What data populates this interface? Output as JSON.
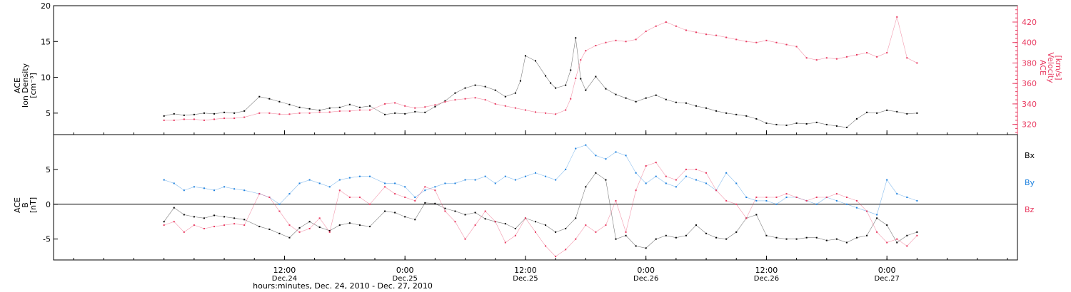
{
  "chart_data": [
    {
      "type": "scatter",
      "panel": "top",
      "ylabel": [
        "ACE",
        "Ion Density",
        "[cm⁻³]"
      ],
      "ylim": [
        2,
        20
      ],
      "yticks": [
        5,
        10,
        15,
        20
      ],
      "y2label": [
        "ACE",
        "Velocity",
        "[km/s]"
      ],
      "y2lim": [
        310,
        436
      ],
      "y2ticks": [
        320,
        340,
        360,
        380,
        400,
        420
      ],
      "series": [
        {
          "name": "",
          "axis": "left",
          "color": "#000000",
          "x": [
            0.0,
            1.0,
            2.0,
            3.0,
            4.0,
            5.0,
            6.0,
            7.0,
            8.0,
            9.5,
            10.5,
            11.5,
            12.5,
            13.5,
            14.5,
            15.5,
            16.5,
            17.5,
            18.5,
            19.5,
            20.5,
            22.0,
            23.0,
            24.0,
            25.0,
            26.0,
            27.0,
            28.0,
            29.0,
            30.0,
            31.0,
            32.0,
            33.0,
            34.0,
            35.0,
            35.5,
            36.0,
            37.0,
            38.0,
            38.5,
            39.0,
            40.0,
            40.5,
            41.0,
            41.5,
            42.0,
            43.0,
            44.0,
            45.0,
            46.0,
            47.0,
            48.0,
            49.0,
            50.0,
            51.0,
            52.0,
            53.0,
            54.0,
            55.0,
            56.0,
            57.0,
            58.0,
            59.0,
            60.0,
            61.0,
            62.0,
            63.0,
            64.0,
            65.0,
            66.0,
            67.0,
            68.0,
            69.0,
            70.0,
            71.0,
            72.0,
            73.0,
            74.0,
            75.0
          ],
          "y": [
            4.6,
            4.9,
            4.7,
            4.8,
            5.0,
            4.9,
            5.1,
            5.0,
            5.3,
            7.3,
            7.0,
            6.6,
            6.2,
            5.8,
            5.6,
            5.4,
            5.7,
            5.8,
            6.2,
            5.8,
            6.0,
            4.8,
            5.0,
            4.9,
            5.2,
            5.1,
            5.9,
            6.7,
            7.8,
            8.5,
            8.9,
            8.7,
            8.2,
            7.3,
            7.8,
            9.5,
            13.0,
            12.3,
            10.2,
            9.2,
            8.5,
            8.9,
            11.0,
            15.5,
            9.8,
            8.2,
            10.1,
            8.4,
            7.6,
            7.1,
            6.6,
            7.1,
            7.5,
            6.9,
            6.5,
            6.4,
            6.0,
            5.7,
            5.3,
            5.0,
            4.8,
            4.6,
            4.2,
            3.6,
            3.4,
            3.3,
            3.6,
            3.5,
            3.7,
            3.4,
            3.2,
            3.0,
            4.2,
            5.1,
            5.0,
            5.4,
            5.2,
            4.9,
            5.0
          ]
        },
        {
          "name": "",
          "axis": "right",
          "color": "#e8385f",
          "x": [
            0.0,
            1.0,
            2.0,
            3.0,
            4.0,
            5.0,
            6.0,
            7.0,
            8.0,
            9.5,
            10.5,
            11.5,
            12.5,
            13.5,
            14.5,
            15.5,
            16.5,
            17.5,
            18.5,
            19.5,
            20.5,
            22.0,
            23.0,
            24.0,
            25.0,
            26.0,
            27.0,
            28.0,
            29.0,
            30.0,
            31.0,
            32.0,
            33.0,
            34.0,
            35.0,
            36.0,
            37.0,
            38.0,
            39.0,
            40.0,
            40.5,
            41.0,
            41.5,
            42.0,
            43.0,
            44.0,
            45.0,
            46.0,
            47.0,
            48.0,
            49.0,
            50.0,
            51.0,
            52.0,
            53.0,
            54.0,
            55.0,
            56.0,
            57.0,
            58.0,
            59.0,
            60.0,
            61.0,
            62.0,
            63.0,
            64.0,
            65.0,
            66.0,
            67.0,
            68.0,
            69.0,
            70.0,
            71.0,
            72.0,
            73.0,
            74.0,
            75.0
          ],
          "y": [
            324,
            324,
            325,
            325,
            324,
            325,
            326,
            326,
            327,
            331,
            331,
            330,
            330,
            331,
            331,
            332,
            332,
            333,
            333,
            334,
            334,
            340,
            341,
            338,
            336,
            337,
            339,
            342,
            344,
            345,
            346,
            344,
            340,
            338,
            336,
            334,
            332,
            331,
            330,
            334,
            345,
            365,
            383,
            392,
            397,
            400,
            402,
            401,
            403,
            411,
            416,
            420,
            416,
            412,
            410,
            408,
            407,
            405,
            403,
            401,
            400,
            402,
            400,
            398,
            396,
            385,
            383,
            385,
            384,
            386,
            388,
            390,
            386,
            390,
            425,
            385,
            380
          ]
        }
      ]
    },
    {
      "type": "scatter",
      "panel": "bottom",
      "ylabel": [
        "ACE",
        "B",
        "[nT]"
      ],
      "ylim": [
        -8,
        10
      ],
      "yticks": [
        -5,
        0,
        5
      ],
      "zero_line": true,
      "xlabel": "hours:minutes, Dec. 24, 2010 - Dec. 27, 2010",
      "xlim": [
        -11,
        85
      ],
      "xticks": [
        {
          "hour": 12,
          "time": "12:00",
          "date": "Dec.24"
        },
        {
          "hour": 24,
          "time": "0:00",
          "date": "Dec.25"
        },
        {
          "hour": 36,
          "time": "12:00",
          "date": "Dec.25"
        },
        {
          "hour": 48,
          "time": "0:00",
          "date": "Dec.26"
        },
        {
          "hour": 60,
          "time": "12:00",
          "date": "Dec.26"
        },
        {
          "hour": 72,
          "time": "0:00",
          "date": "Dec.27"
        }
      ],
      "series": [
        {
          "name": "Bx",
          "color": "#000000",
          "x": [
            0.0,
            1.0,
            2.0,
            3.0,
            4.0,
            5.0,
            6.0,
            7.0,
            8.0,
            9.5,
            10.5,
            11.5,
            12.5,
            13.5,
            14.5,
            15.5,
            16.5,
            17.5,
            18.5,
            19.5,
            20.5,
            22.0,
            23.0,
            24.0,
            25.0,
            26.0,
            27.0,
            28.0,
            29.0,
            30.0,
            31.0,
            32.0,
            33.0,
            34.0,
            35.0,
            36.0,
            37.0,
            38.0,
            39.0,
            40.0,
            41.0,
            42.0,
            43.0,
            44.0,
            45.0,
            46.0,
            47.0,
            48.0,
            49.0,
            50.0,
            51.0,
            52.0,
            53.0,
            54.0,
            55.0,
            56.0,
            57.0,
            58.0,
            59.0,
            60.0,
            61.0,
            62.0,
            63.0,
            64.0,
            65.0,
            66.0,
            67.0,
            68.0,
            69.0,
            70.0,
            71.0,
            72.0,
            73.0,
            74.0,
            75.0
          ],
          "y": [
            -2.5,
            -0.5,
            -1.5,
            -1.8,
            -2.0,
            -1.6,
            -1.8,
            -2.0,
            -2.2,
            -3.2,
            -3.6,
            -4.2,
            -4.8,
            -3.4,
            -2.5,
            -3.3,
            -3.8,
            -3.0,
            -2.7,
            -3.0,
            -3.2,
            -1.0,
            -1.2,
            -1.8,
            -2.2,
            0.2,
            0.1,
            -0.6,
            -1.0,
            -1.5,
            -1.2,
            -2.1,
            -2.5,
            -2.8,
            -3.5,
            -2.0,
            -2.5,
            -3.0,
            -4.0,
            -3.5,
            -2.0,
            2.5,
            4.5,
            3.5,
            -5.0,
            -4.5,
            -6.0,
            -6.3,
            -5.0,
            -4.5,
            -4.8,
            -4.5,
            -3.0,
            -4.2,
            -4.8,
            -5.0,
            -4.0,
            -2.0,
            -1.5,
            -4.5,
            -4.8,
            -5.0,
            -5.0,
            -4.8,
            -4.8,
            -5.2,
            -5.0,
            -5.5,
            -4.8,
            -4.5,
            -2.0,
            -3.0,
            -5.5,
            -4.5,
            -4.0
          ]
        },
        {
          "name": "By",
          "color": "#1a7fdd",
          "x": [
            0.0,
            1.0,
            2.0,
            3.0,
            4.0,
            5.0,
            6.0,
            7.0,
            8.0,
            9.5,
            10.5,
            11.5,
            12.5,
            13.5,
            14.5,
            15.5,
            16.5,
            17.5,
            18.5,
            19.5,
            20.5,
            22.0,
            23.0,
            24.0,
            25.0,
            26.0,
            27.0,
            28.0,
            29.0,
            30.0,
            31.0,
            32.0,
            33.0,
            34.0,
            35.0,
            36.0,
            37.0,
            38.0,
            39.0,
            40.0,
            41.0,
            42.0,
            43.0,
            44.0,
            45.0,
            46.0,
            47.0,
            48.0,
            49.0,
            50.0,
            51.0,
            52.0,
            53.0,
            54.0,
            55.0,
            56.0,
            57.0,
            58.0,
            59.0,
            60.0,
            61.0,
            62.0,
            63.0,
            64.0,
            65.0,
            66.0,
            67.0,
            68.0,
            69.0,
            70.0,
            71.0,
            72.0,
            73.0,
            74.0,
            75.0
          ],
          "y": [
            3.5,
            3.0,
            2.0,
            2.5,
            2.3,
            2.0,
            2.5,
            2.2,
            2.0,
            1.5,
            1.0,
            0.0,
            1.5,
            3.0,
            3.5,
            3.0,
            2.5,
            3.5,
            3.8,
            4.0,
            4.0,
            3.0,
            3.0,
            2.5,
            1.0,
            2.0,
            2.5,
            3.0,
            3.0,
            3.5,
            3.5,
            4.0,
            3.0,
            4.0,
            3.5,
            4.0,
            4.5,
            4.0,
            3.5,
            5.0,
            8.0,
            8.5,
            7.0,
            6.5,
            7.5,
            7.0,
            4.5,
            3.0,
            4.0,
            3.0,
            2.5,
            4.0,
            3.5,
            3.0,
            2.0,
            4.5,
            3.0,
            1.0,
            0.5,
            0.5,
            0.0,
            1.0,
            1.0,
            0.5,
            0.0,
            1.0,
            0.5,
            0.0,
            -0.5,
            -1.0,
            -1.5,
            3.5,
            1.5,
            1.0,
            0.5
          ]
        },
        {
          "name": "Bz",
          "color": "#e8385f",
          "x": [
            0.0,
            1.0,
            2.0,
            3.0,
            4.0,
            5.0,
            6.0,
            7.0,
            8.0,
            9.5,
            10.5,
            11.5,
            12.5,
            13.5,
            14.5,
            15.5,
            16.5,
            17.5,
            18.5,
            19.5,
            20.5,
            22.0,
            23.0,
            24.0,
            25.0,
            26.0,
            27.0,
            28.0,
            29.0,
            30.0,
            31.0,
            32.0,
            33.0,
            34.0,
            35.0,
            36.0,
            37.0,
            38.0,
            39.0,
            40.0,
            41.0,
            42.0,
            43.0,
            44.0,
            45.0,
            46.0,
            47.0,
            48.0,
            49.0,
            50.0,
            51.0,
            52.0,
            53.0,
            54.0,
            55.0,
            56.0,
            57.0,
            58.0,
            59.0,
            60.0,
            61.0,
            62.0,
            63.0,
            64.0,
            65.0,
            66.0,
            67.0,
            68.0,
            69.0,
            70.0,
            71.0,
            72.0,
            73.0,
            74.0,
            75.0
          ],
          "y": [
            -3.0,
            -2.5,
            -4.0,
            -3.0,
            -3.5,
            -3.2,
            -3.0,
            -2.8,
            -3.0,
            1.5,
            1.0,
            -1.0,
            -3.0,
            -4.0,
            -3.5,
            -2.0,
            -4.0,
            2.0,
            1.0,
            1.0,
            0.0,
            2.5,
            1.5,
            1.0,
            0.5,
            2.5,
            2.0,
            -1.0,
            -2.5,
            -5.0,
            -3.0,
            -1.0,
            -2.5,
            -5.5,
            -4.5,
            -2.0,
            -4.0,
            -6.0,
            -7.5,
            -6.5,
            -5.0,
            -3.0,
            -4.0,
            -3.0,
            0.5,
            -4.0,
            2.0,
            5.5,
            6.0,
            4.0,
            3.5,
            5.0,
            5.0,
            4.5,
            2.0,
            0.5,
            0.0,
            -2.0,
            1.0,
            1.0,
            1.0,
            1.5,
            1.0,
            0.5,
            1.0,
            1.0,
            1.5,
            1.0,
            0.5,
            -1.0,
            -4.0,
            -5.5,
            -5.0,
            -6.0,
            -4.5
          ]
        }
      ]
    }
  ]
}
